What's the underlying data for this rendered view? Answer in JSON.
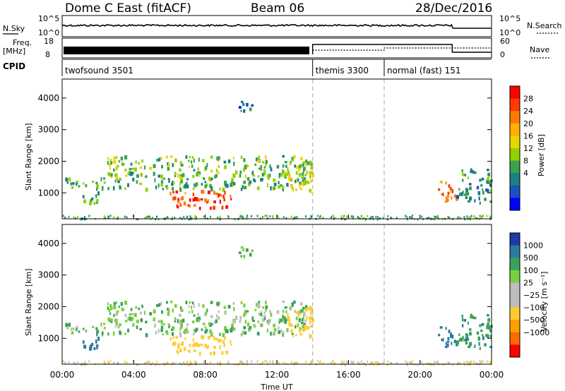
{
  "header": {
    "title": "Dome C East (fitACF)",
    "beam": "Beam 06",
    "date": "28/Dec/2016"
  },
  "noise_panel": {
    "left_label": "N.Sky",
    "left_ticks": [
      "10^5",
      "10^0"
    ],
    "right_label": "N.Search",
    "right_ticks": [
      "10^5",
      "10^0"
    ]
  },
  "freq_panel": {
    "left_label_top": "Freq.",
    "left_label_bottom": "[MHz]",
    "left_ticks": [
      "18",
      "8"
    ],
    "right_label": "Nave",
    "right_ticks": [
      "60",
      "0"
    ]
  },
  "cpid_panel": {
    "label": "CPID",
    "modes": [
      {
        "name": "twofsound 3501",
        "start_hour": 0
      },
      {
        "name": "themis 3300",
        "start_hour": 14
      },
      {
        "name": "normal (fast) 151",
        "start_hour": 18
      }
    ]
  },
  "power_panel": {
    "ylabel": "Slant Range [km]",
    "colorbar_label": "Power [dB]",
    "colorbar_ticks": [
      "28",
      "24",
      "20",
      "16",
      "12",
      "8",
      "4"
    ],
    "colorbar_colors": [
      "#ff0000",
      "#ff3a00",
      "#ff7a00",
      "#ffb000",
      "#e8d800",
      "#94d000",
      "#3ca050",
      "#1a8080",
      "#1c50c0",
      "#0000ff"
    ]
  },
  "velocity_panel": {
    "ylabel": "Slant Range [km]",
    "colorbar_label": "Velocity [m s⁻¹]",
    "colorbar_ticks": [
      "1000",
      "500",
      "100",
      "25",
      "−25",
      "−100",
      "−500",
      "−1000"
    ],
    "colorbar_colors": [
      "#1c3aa8",
      "#2b7aa0",
      "#3aa05a",
      "#7ad040",
      "#bdbdbd",
      "#bdbdbd",
      "#ffcc30",
      "#ffa000",
      "#ff6a00",
      "#ff0000"
    ]
  },
  "x_axis": {
    "label": "Time UT",
    "ticks": [
      "00:00",
      "04:00",
      "08:00",
      "12:00",
      "16:00",
      "20:00",
      "00:00"
    ]
  },
  "chart_data": {
    "type": "heatmap",
    "title": "Dome C East (fitACF)",
    "subtitle": "Beam 06",
    "xlabel": "Time UT",
    "ylabel": "Slant Range [km]",
    "xlim_hours": [
      0,
      24
    ],
    "ylim_km": [
      180,
      4600
    ],
    "y_ticks": [
      1000,
      2000,
      3000,
      4000
    ],
    "mode_boundaries_hours": [
      14,
      18
    ],
    "scatter_regions": [
      {
        "t0": 0.0,
        "t1": 14.0,
        "r0": 1150,
        "r1": 1500,
        "power_db": 10,
        "velocity_ms": 20
      },
      {
        "t0": 2.5,
        "t1": 14.0,
        "r0": 1500,
        "r1": 2200,
        "power_db": 12,
        "velocity_ms": 15
      },
      {
        "t0": 6.0,
        "t1": 9.5,
        "r0": 550,
        "r1": 1100,
        "power_db": 26,
        "velocity_ms": -300
      },
      {
        "t0": 1.0,
        "t1": 2.0,
        "r0": 700,
        "r1": 1100,
        "power_db": 10,
        "velocity_ms": 120
      },
      {
        "t0": 12.5,
        "t1": 14.0,
        "r0": 1100,
        "r1": 2000,
        "power_db": 16,
        "velocity_ms": -150
      },
      {
        "t0": 21.0,
        "t1": 22.0,
        "r0": 700,
        "r1": 1400,
        "power_db": 24,
        "velocity_ms": 300
      },
      {
        "t0": 22.0,
        "t1": 24.0,
        "r0": 700,
        "r1": 1800,
        "power_db": 8,
        "velocity_ms": 80
      },
      {
        "t0": 9.8,
        "t1": 10.6,
        "r0": 3600,
        "r1": 4000,
        "power_db": 6,
        "velocity_ms": 20
      }
    ],
    "colorbars": [
      {
        "name": "Power [dB]",
        "min": 0,
        "max": 30
      },
      {
        "name": "Velocity [m s⁻¹]",
        "min": -1000,
        "max": 1000
      }
    ]
  }
}
